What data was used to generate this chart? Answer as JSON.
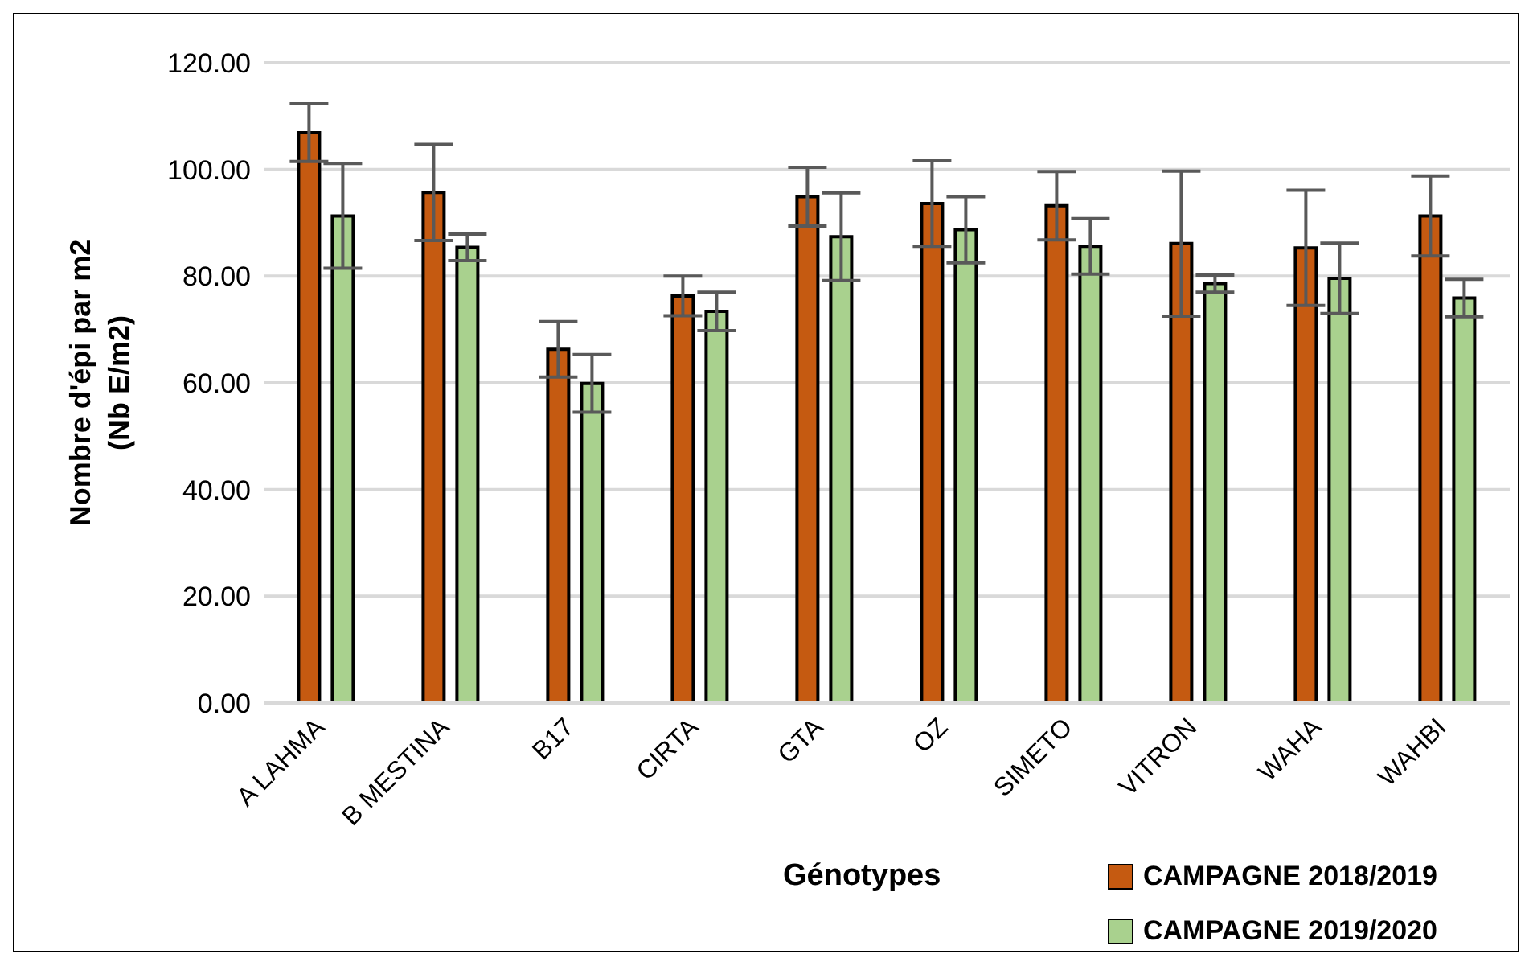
{
  "chart_data": {
    "type": "bar",
    "xlabel": "Génotypes",
    "ylabel": "Nombre d'épi par m2\n(Nb E/m2)",
    "categories": [
      "A LAHMA",
      "B MESTINA",
      "B17",
      "CIRTA",
      "GTA",
      "OZ",
      "SIMETO",
      "VITRON",
      "WAHA",
      "WAHBI"
    ],
    "series": [
      {
        "name": "CAMPAGNE 2018/2019",
        "color": "#c55a11",
        "values": [
          106.9,
          95.7,
          66.3,
          76.3,
          94.9,
          93.6,
          93.2,
          86.1,
          85.3,
          91.3
        ],
        "errors": [
          5.4,
          9,
          5.2,
          3.7,
          5.5,
          8,
          6.4,
          13.6,
          10.8,
          7.5
        ]
      },
      {
        "name": "CAMPAGNE 2019/2020",
        "color": "#a9d18e",
        "values": [
          91.3,
          85.4,
          59.9,
          73.4,
          87.4,
          88.7,
          85.6,
          78.6,
          79.6,
          75.9
        ],
        "errors": [
          9.8,
          2.5,
          5.4,
          3.6,
          8.2,
          6.2,
          5.2,
          1.6,
          6.6,
          3.5
        ]
      }
    ],
    "ylim": [
      0,
      120
    ],
    "yticks": [
      {
        "value": 0,
        "label": "0.00"
      },
      {
        "value": 20,
        "label": "20.00"
      },
      {
        "value": 40,
        "label": "40.00"
      },
      {
        "value": 60,
        "label": "60.00"
      },
      {
        "value": 80,
        "label": "80.00"
      },
      {
        "value": 100,
        "label": "100.00"
      },
      {
        "value": 120,
        "label": "120.00"
      }
    ],
    "grid": "y",
    "legend": "bottom right"
  }
}
